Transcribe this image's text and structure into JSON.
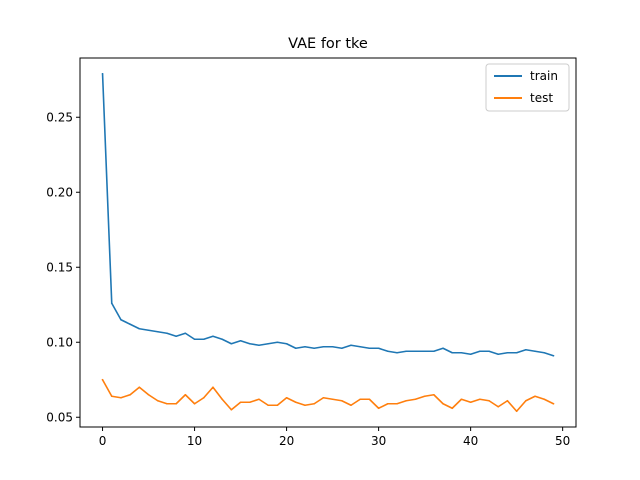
{
  "chart_data": {
    "type": "line",
    "title": "VAE for tke",
    "xlabel": "",
    "ylabel": "",
    "xlim": [
      -2.45,
      51.45
    ],
    "ylim": [
      0.0435,
      0.2895
    ],
    "xticks": [
      0,
      10,
      20,
      30,
      40,
      50
    ],
    "yticks": [
      0.05,
      0.1,
      0.15,
      0.2,
      0.25
    ],
    "xtick_labels": [
      "0",
      "10",
      "20",
      "30",
      "40",
      "50"
    ],
    "ytick_labels": [
      "0.05",
      "0.10",
      "0.15",
      "0.20",
      "0.25"
    ],
    "grid": false,
    "legend": "top-right",
    "x": [
      0,
      1,
      2,
      3,
      4,
      5,
      6,
      7,
      8,
      9,
      10,
      11,
      12,
      13,
      14,
      15,
      16,
      17,
      18,
      19,
      20,
      21,
      22,
      23,
      24,
      25,
      26,
      27,
      28,
      29,
      30,
      31,
      32,
      33,
      34,
      35,
      36,
      37,
      38,
      39,
      40,
      41,
      42,
      43,
      44,
      45,
      46,
      47,
      48,
      49
    ],
    "series": [
      {
        "name": "train",
        "color": "#1f77b4",
        "values": [
          0.279,
          0.126,
          0.115,
          0.112,
          0.109,
          0.108,
          0.107,
          0.106,
          0.104,
          0.106,
          0.102,
          0.102,
          0.104,
          0.102,
          0.099,
          0.101,
          0.099,
          0.098,
          0.099,
          0.1,
          0.099,
          0.096,
          0.097,
          0.096,
          0.097,
          0.097,
          0.096,
          0.098,
          0.097,
          0.096,
          0.096,
          0.094,
          0.093,
          0.094,
          0.094,
          0.094,
          0.094,
          0.096,
          0.093,
          0.093,
          0.092,
          0.094,
          0.094,
          0.092,
          0.093,
          0.093,
          0.095,
          0.094,
          0.093,
          0.091
        ]
      },
      {
        "name": "test",
        "color": "#ff7f0e",
        "values": [
          0.075,
          0.064,
          0.063,
          0.065,
          0.07,
          0.065,
          0.061,
          0.059,
          0.059,
          0.065,
          0.059,
          0.063,
          0.07,
          0.062,
          0.055,
          0.06,
          0.06,
          0.062,
          0.058,
          0.058,
          0.063,
          0.06,
          0.058,
          0.059,
          0.063,
          0.062,
          0.061,
          0.058,
          0.062,
          0.062,
          0.056,
          0.059,
          0.059,
          0.061,
          0.062,
          0.064,
          0.065,
          0.059,
          0.056,
          0.062,
          0.06,
          0.062,
          0.061,
          0.057,
          0.061,
          0.054,
          0.061,
          0.064,
          0.062,
          0.059
        ]
      }
    ]
  }
}
